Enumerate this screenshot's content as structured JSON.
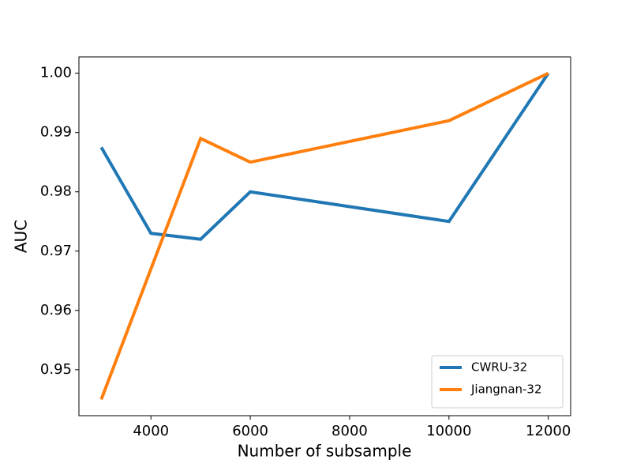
{
  "chart_data": {
    "type": "line",
    "x_label": "Number of subsample",
    "y_label": "AUC",
    "x": [
      3000,
      4000,
      5000,
      6000,
      10000,
      12000
    ],
    "series": [
      {
        "name": "CWRU-32",
        "color": "#1f77b4",
        "values": [
          0.9875,
          0.973,
          0.972,
          0.98,
          0.975,
          1.0
        ]
      },
      {
        "name": "Jiangnan-32",
        "color": "#ff7f0e",
        "values": [
          0.945,
          0.967,
          0.989,
          0.985,
          0.992,
          1.0
        ]
      }
    ],
    "xlim": [
      2550,
      12450
    ],
    "xticks": [
      4000,
      6000,
      8000,
      10000,
      12000
    ],
    "ylim": [
      0.94225,
      1.00275
    ],
    "yticks": [
      0.95,
      0.96,
      0.97,
      0.98,
      0.99,
      {
        "value": 1,
        "label": "1.00"
      }
    ],
    "legend": "lower right",
    "grid": false
  }
}
